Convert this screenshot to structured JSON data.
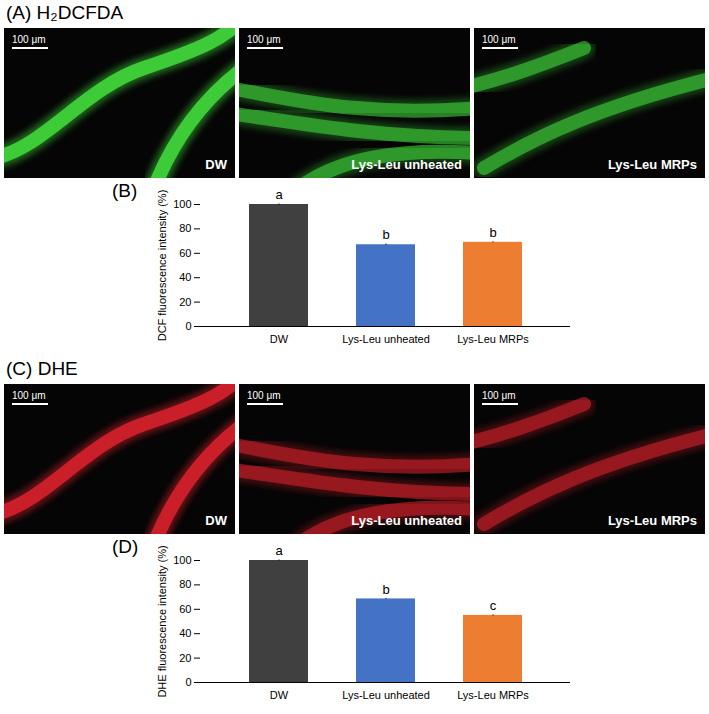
{
  "image_panels": [
    {
      "panel": "(A)",
      "title": "H₂DCFDA",
      "color": "#3fd23a",
      "images": [
        {
          "label": "DW",
          "scale_bar": "100 μm"
        },
        {
          "label": "Lys-Leu unheated",
          "scale_bar": "100 μm"
        },
        {
          "label": "Lys-Leu MRPs",
          "scale_bar": "100 μm"
        }
      ]
    },
    {
      "panel": "(C)",
      "title": "DHE",
      "color": "#d0202a",
      "images": [
        {
          "label": "DW",
          "scale_bar": "100 μm"
        },
        {
          "label": "Lys-Leu unheated",
          "scale_bar": "100 μm"
        },
        {
          "label": "Lys-Leu MRPs",
          "scale_bar": "100 μm"
        }
      ]
    }
  ],
  "chart_data": [
    {
      "type": "bar",
      "panel": "(B)",
      "y_label": "DCF fluorescence intensity (%)",
      "categories": [
        "DW",
        "Lys-Leu unheated",
        "Lys-Leu MRPs"
      ],
      "values": [
        100,
        67,
        69
      ],
      "errors": [
        0.4,
        0.5,
        0.4
      ],
      "significance": [
        "a",
        "b",
        "b"
      ],
      "colors": [
        "#404040",
        "#4472c4",
        "#ed7d31"
      ],
      "ylim": [
        0,
        100
      ],
      "yticks": [
        0,
        20,
        40,
        60,
        80,
        100
      ],
      "grid": false
    },
    {
      "type": "bar",
      "panel": "(D)",
      "y_label": "DHE fluorescence intensity (%)",
      "categories": [
        "DW",
        "Lys-Leu unheated",
        "Lys-Leu MRPs"
      ],
      "values": [
        100,
        68.5,
        55
      ],
      "errors": [
        0.4,
        0.4,
        0.4
      ],
      "significance": [
        "a",
        "b",
        "c"
      ],
      "colors": [
        "#404040",
        "#4472c4",
        "#ed7d31"
      ],
      "ylim": [
        0,
        100
      ],
      "yticks": [
        0,
        20,
        40,
        60,
        80,
        100
      ],
      "grid": false
    }
  ]
}
